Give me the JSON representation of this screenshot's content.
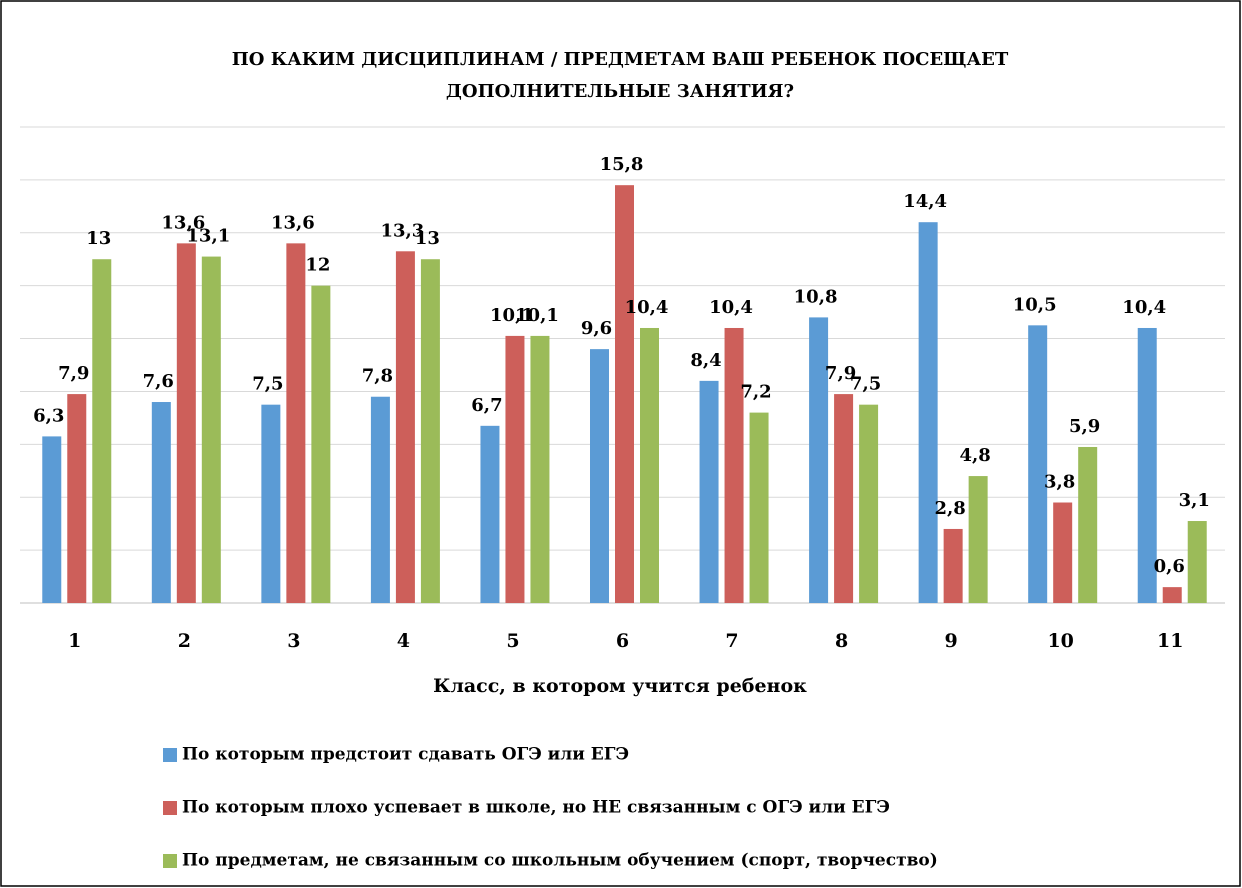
{
  "chart_data": {
    "type": "bar",
    "title": [
      "ПО КАКИМ ДИСЦИПЛИНАМ / ПРЕДМЕТАМ ВАШ РЕБЕНОК ПОСЕЩАЕТ",
      "ДОПОЛНИТЕЛЬНЫЕ ЗАНЯТИЯ?"
    ],
    "x_label": "Класс, в котором учится ребенок",
    "categories": [
      "1",
      "2",
      "3",
      "4",
      "5",
      "6",
      "7",
      "8",
      "9",
      "10",
      "11"
    ],
    "series": [
      {
        "name": "По которым предстоит сдавать ОГЭ или ЕГЭ",
        "color": "#5b9bd5",
        "values": [
          6.3,
          7.6,
          7.5,
          7.8,
          6.7,
          9.6,
          8.4,
          10.8,
          14.4,
          10.5,
          10.4
        ],
        "value_labels": [
          "6,3",
          "7,6",
          "7,5",
          "7,8",
          "6,7",
          "9,6",
          "8,4",
          "10,8",
          "14,4",
          "10,5",
          "10,4"
        ]
      },
      {
        "name": "По которым плохо успевает в школе, но НЕ связанным с ОГЭ или ЕГЭ",
        "color": "#cd5f5a",
        "values": [
          7.9,
          13.6,
          13.6,
          13.3,
          10.1,
          15.8,
          10.4,
          7.9,
          2.8,
          3.8,
          0.6
        ],
        "value_labels": [
          "7,9",
          "13,6",
          "13,6",
          "13,3",
          "10,1",
          "15,8",
          "10,4",
          "7,9",
          "2,8",
          "3,8",
          "0,6"
        ]
      },
      {
        "name": "По предметам, не связанным со школьным обучением (спорт, творчество)",
        "color": "#9bbb59",
        "values": [
          13,
          13.1,
          12,
          13,
          10.1,
          10.4,
          7.2,
          7.5,
          4.8,
          5.9,
          3.1
        ],
        "value_labels": [
          "13",
          "13,1",
          "12",
          "13",
          "10,1",
          "10,4",
          "7,2",
          "7,5",
          "4,8",
          "5,9",
          "3,1"
        ]
      }
    ],
    "ylim": [
      0,
      18
    ],
    "yticks": [
      0,
      2,
      4,
      6,
      8,
      10,
      12,
      14,
      16,
      18
    ],
    "grid": true
  }
}
